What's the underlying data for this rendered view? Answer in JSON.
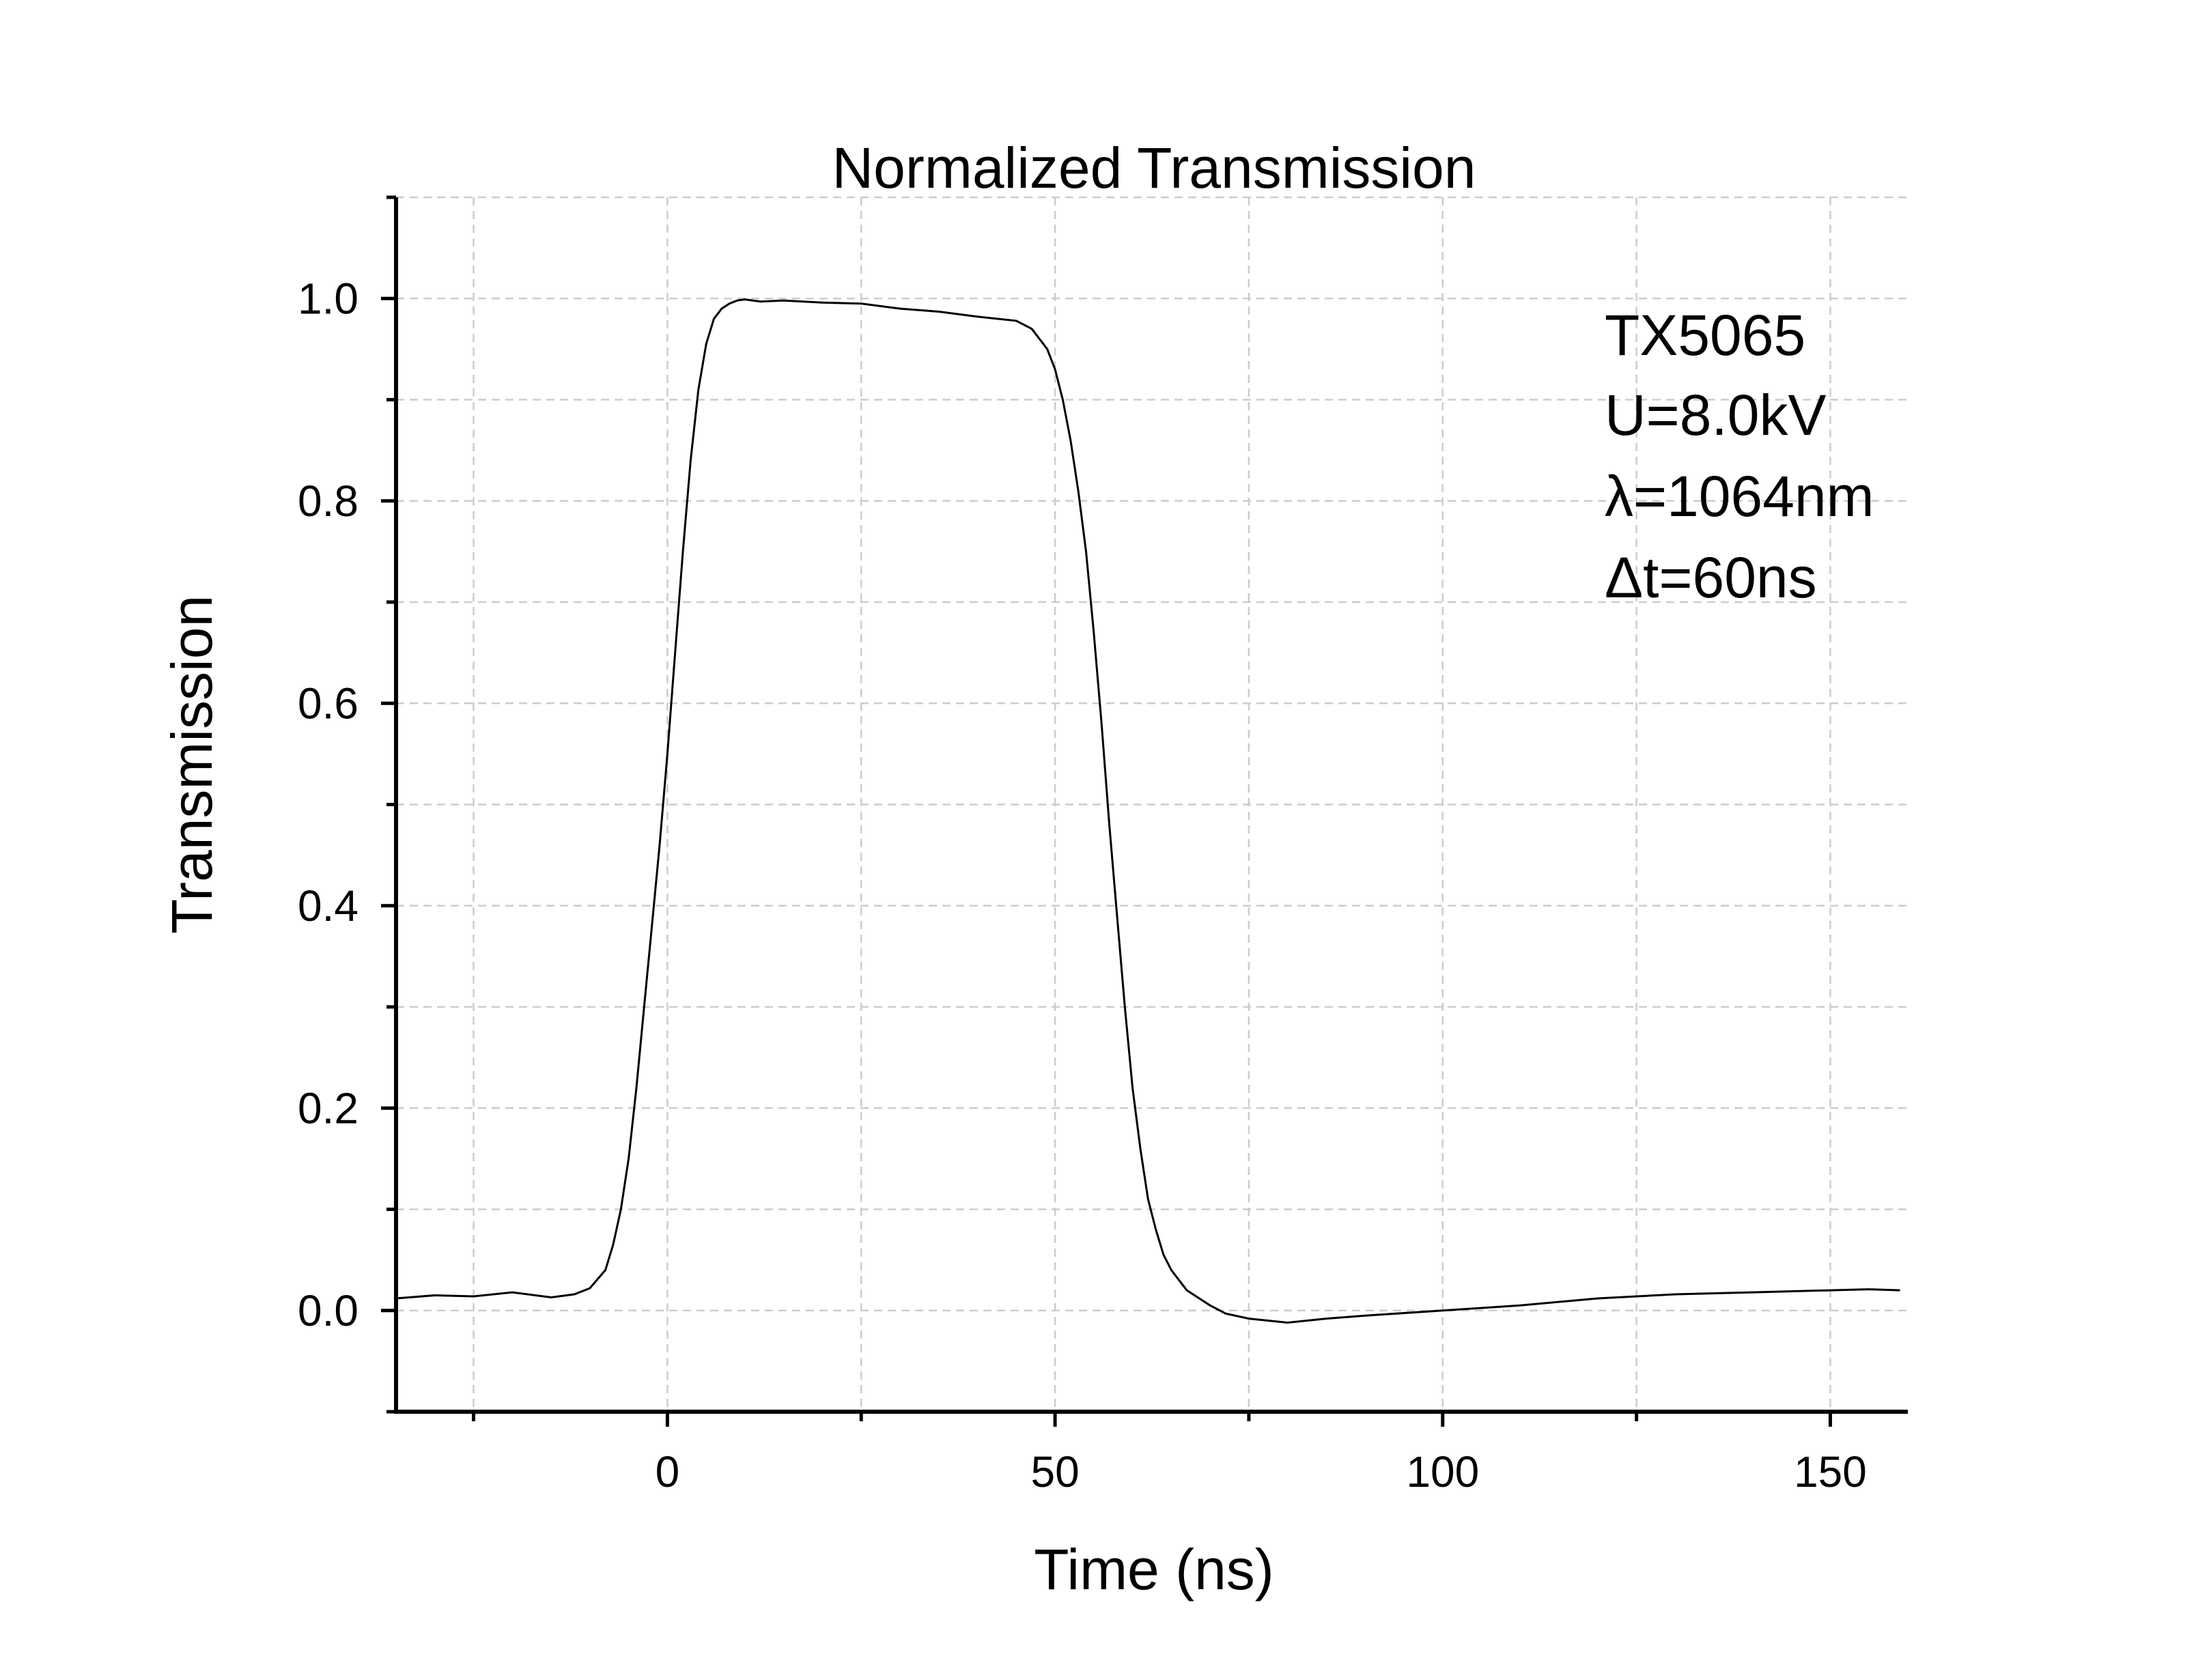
{
  "chart_data": {
    "type": "line",
    "title": "Normalized Transmission",
    "xlabel": "Time (ns)",
    "ylabel": "Transmission",
    "xlim": [
      -35,
      160
    ],
    "ylim": [
      -0.1,
      1.1
    ],
    "x_major_ticks": [
      0,
      50,
      100,
      150
    ],
    "x_minor_ticks": [
      -25,
      25,
      75,
      125
    ],
    "y_major_ticks": [
      0.0,
      0.2,
      0.4,
      0.6,
      0.8,
      1.0
    ],
    "y_minor_ticks": [
      -0.1,
      0.1,
      0.3,
      0.5,
      0.7,
      0.9,
      1.1
    ],
    "x_tick_labels": [
      "0",
      "50",
      "100",
      "150"
    ],
    "y_tick_labels": [
      "0.0",
      "0.2",
      "0.4",
      "0.6",
      "0.8",
      "1.0"
    ],
    "grid": true,
    "annotations": [
      "TX5065",
      "U=8.0kV",
      "λ=1064nm",
      "Δt=60ns"
    ],
    "series": [
      {
        "x": [
          -35,
          -30,
          -25,
          -20,
          -15,
          -12,
          -10,
          -8,
          -7,
          -6,
          -5,
          -4,
          -3,
          -2,
          -1,
          0,
          1,
          2,
          3,
          4,
          5,
          6,
          7,
          8,
          9,
          10,
          12,
          15,
          20,
          25,
          30,
          35,
          40,
          45,
          47,
          49,
          50,
          51,
          52,
          53,
          54,
          55,
          56,
          57,
          58,
          59,
          60,
          61,
          62,
          63,
          64,
          65,
          66,
          67,
          68,
          70,
          72,
          75,
          80,
          85,
          90,
          100,
          110,
          120,
          130,
          140,
          150,
          155,
          159
        ],
        "y": [
          0.012,
          0.015,
          0.014,
          0.018,
          0.013,
          0.016,
          0.022,
          0.04,
          0.065,
          0.1,
          0.15,
          0.22,
          0.3,
          0.38,
          0.46,
          0.55,
          0.65,
          0.75,
          0.84,
          0.91,
          0.955,
          0.98,
          0.99,
          0.995,
          0.998,
          0.999,
          0.997,
          0.998,
          0.996,
          0.995,
          0.99,
          0.987,
          0.982,
          0.978,
          0.97,
          0.95,
          0.93,
          0.9,
          0.86,
          0.81,
          0.75,
          0.67,
          0.58,
          0.48,
          0.39,
          0.3,
          0.22,
          0.16,
          0.11,
          0.08,
          0.055,
          0.04,
          0.03,
          0.02,
          0.015,
          0.005,
          -0.003,
          -0.008,
          -0.012,
          -0.008,
          -0.005,
          0.0,
          0.005,
          0.012,
          0.016,
          0.018,
          0.02,
          0.021,
          0.02
        ]
      }
    ]
  }
}
